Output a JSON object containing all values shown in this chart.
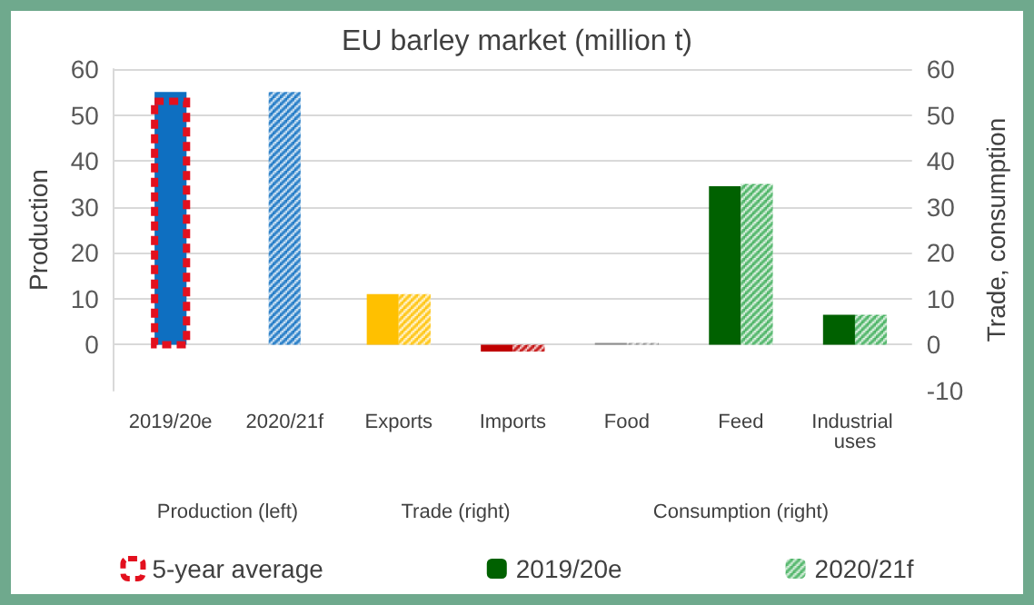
{
  "chart_data": {
    "type": "bar",
    "title": "EU barley market (million t)",
    "categories": [
      "2019/20e",
      "2020/21f",
      "Exports",
      "Imports",
      "Food",
      "Feed",
      "Industrial uses"
    ],
    "series": [
      {
        "name": "5-year average",
        "color": "#e3101e",
        "line_style": "dashed",
        "values": [
          53,
          null,
          null,
          null,
          null,
          null,
          null
        ]
      },
      {
        "name": "2019/20e",
        "color": "#006100",
        "colors": [
          "#0e6fc1",
          null,
          "#ffc000",
          "#c00000",
          "#8c8c8c",
          "#006100",
          "#006100"
        ],
        "values": [
          55,
          null,
          11,
          -1.5,
          0.4,
          34.5,
          6.5
        ]
      },
      {
        "name": "2020/21f",
        "color": "#3fae5a",
        "colors": [
          null,
          "#0e6fc1",
          "#ffc000",
          "#c00000",
          "#8c8c8c",
          "#3fae5a",
          "#3fae5a"
        ],
        "values": [
          null,
          55,
          11,
          -1.5,
          0.4,
          35,
          6.5
        ]
      }
    ],
    "ylabel": "Production",
    "y2label": "Trade, consumption",
    "ylim": [
      -10,
      60
    ],
    "yticks": [
      0,
      10,
      20,
      30,
      40,
      50,
      60
    ],
    "y2lim": [
      -10,
      60
    ],
    "y2ticks": [
      -10,
      0,
      10,
      20,
      30,
      40,
      50,
      60
    ],
    "annotations": [
      "Production (left)",
      "Trade (right)",
      "Consumption (right)"
    ],
    "grid": "y",
    "legend": "bottom"
  }
}
